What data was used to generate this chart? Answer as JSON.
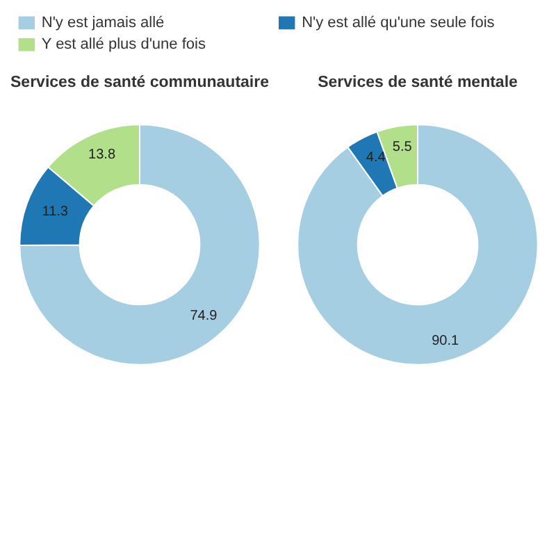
{
  "chart_data": [
    {
      "type": "donut",
      "title": "Services de santé communautaire",
      "categories": [
        "N'y est jamais allé",
        "N'y est allé qu'une seule fois",
        "Y est allé plus d'une fois"
      ],
      "values": [
        74.9,
        11.3,
        13.8
      ],
      "colors": [
        "#a6cee3",
        "#1f78b4",
        "#b2df8a"
      ],
      "data_labels": true,
      "legend": "top"
    },
    {
      "type": "donut",
      "title": "Services de santé mentale",
      "categories": [
        null,
        null,
        null
      ],
      "values": [
        90.1,
        4.4,
        5.5
      ],
      "colors": [
        "#a6cee3",
        "#1f78b4",
        "#b2df8a"
      ],
      "data_labels": true
    }
  ]
}
